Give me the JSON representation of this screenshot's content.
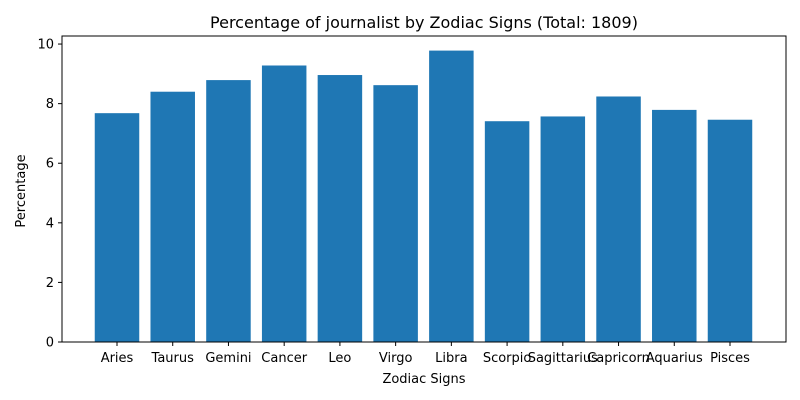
{
  "chart_data": {
    "type": "bar",
    "title": "Percentage of journalist by Zodiac Signs (Total: 1809)",
    "xlabel": "Zodiac Signs",
    "ylabel": "Percentage",
    "categories": [
      "Aries",
      "Taurus",
      "Gemini",
      "Cancer",
      "Leo",
      "Virgo",
      "Libra",
      "Scorpio",
      "Sagittarius",
      "Capricorn",
      "Aquarius",
      "Pisces"
    ],
    "values": [
      7.68,
      8.4,
      8.79,
      9.28,
      8.96,
      8.62,
      9.78,
      7.41,
      7.57,
      8.24,
      7.79,
      7.46
    ],
    "ylim": [
      0,
      10.27
    ],
    "yticks": [
      0,
      2,
      4,
      6,
      8,
      10
    ],
    "bar_color": "#1f77b4",
    "grid": false,
    "legend": "none"
  }
}
